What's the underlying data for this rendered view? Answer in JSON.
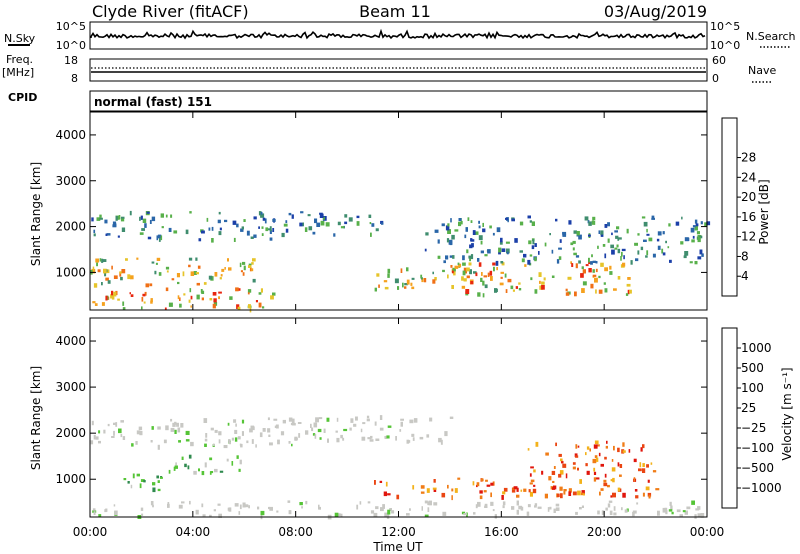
{
  "header": {
    "station": "Clyde River (fitACF)",
    "beam": "Beam 11",
    "date": "03/Aug/2019"
  },
  "top_panels": {
    "nsky_label": "N.Sky",
    "nsky_ticks": [
      "10^5",
      "10^0"
    ],
    "nsearch_label": "N.Search",
    "nsearch_ticks": [
      "10^5",
      "10^0"
    ],
    "freq_label": "Freq.",
    "freq_unit": "[MHz]",
    "freq_ticks": [
      "18",
      "8"
    ],
    "nave_label": "Nave",
    "nave_ticks": [
      "60",
      "0"
    ],
    "cpid_label": "CPID",
    "cpid_value": "normal (fast) 151"
  },
  "chart_data": [
    {
      "type": "heatmap",
      "panel": "power",
      "ylabel": "Slant Range [km]",
      "xlabel": "Time UT",
      "xlim_hours": [
        0,
        24
      ],
      "ylim": [
        180,
        4500
      ],
      "y_ticks": [
        "1000",
        "2000",
        "3000",
        "4000"
      ],
      "x_ticks": [
        "00:00",
        "04:00",
        "08:00",
        "12:00",
        "16:00",
        "20:00",
        "00:00"
      ],
      "colorbar": {
        "label": "Power [dB]",
        "ticks": [
          "4",
          "8",
          "12",
          "16",
          "20",
          "24",
          "28"
        ],
        "colors": [
          "#1420e6",
          "#1b3fa8",
          "#2a66a8",
          "#3f8d6e",
          "#58b04a",
          "#e6c42a",
          "#f5a11e",
          "#f07016",
          "#e8260f"
        ]
      },
      "features": [
        {
          "t0": 0.0,
          "t1": 7.3,
          "r0": 180,
          "r1": 650,
          "level": "high"
        },
        {
          "t0": 0.0,
          "t1": 6.5,
          "r0": 700,
          "r1": 1300,
          "level": "mid"
        },
        {
          "t0": 0.0,
          "t1": 8.0,
          "r0": 1700,
          "r1": 2300,
          "level": "low"
        },
        {
          "t0": 8.0,
          "t1": 11.5,
          "r0": 1800,
          "r1": 2300,
          "level": "low"
        },
        {
          "t0": 11.0,
          "t1": 16.0,
          "r0": 600,
          "r1": 1100,
          "level": "mid"
        },
        {
          "t0": 14.0,
          "t1": 21.0,
          "r0": 500,
          "r1": 1200,
          "level": "high"
        },
        {
          "t0": 13.0,
          "t1": 24.0,
          "r0": 1200,
          "r1": 2200,
          "level": "low"
        }
      ]
    },
    {
      "type": "heatmap",
      "panel": "velocity",
      "ylabel": "Slant Range [km]",
      "xlabel": "Time UT",
      "xlim_hours": [
        0,
        24
      ],
      "ylim": [
        180,
        4500
      ],
      "y_ticks": [
        "1000",
        "2000",
        "3000",
        "4000"
      ],
      "x_ticks": [
        "00:00",
        "04:00",
        "08:00",
        "12:00",
        "16:00",
        "20:00",
        "00:00"
      ],
      "colorbar": {
        "label": "Velocity [m s⁻¹]",
        "ticks": [
          "1000",
          "500",
          "100",
          "25",
          "−25",
          "−100",
          "−500",
          "−1000"
        ],
        "colors": [
          "#1a3fd1",
          "#2264a6",
          "#2f8a4e",
          "#55c436",
          "#c8c8c4",
          "#f3b21a",
          "#f07c16",
          "#ea4512",
          "#e0150c"
        ]
      },
      "features": [
        {
          "t0": 0.0,
          "t1": 8.5,
          "r0": 1700,
          "r1": 2300,
          "level": "gray"
        },
        {
          "t0": 8.5,
          "t1": 14.0,
          "r0": 1800,
          "r1": 2350,
          "level": "gray"
        },
        {
          "t0": 1.0,
          "t1": 3.0,
          "r0": 700,
          "r1": 1100,
          "level": "green"
        },
        {
          "t0": 3.0,
          "t1": 6.0,
          "r0": 1100,
          "r1": 1500,
          "level": "green"
        },
        {
          "t0": 11.0,
          "t1": 17.5,
          "r0": 600,
          "r1": 1000,
          "level": "orange"
        },
        {
          "t0": 17.0,
          "t1": 22.0,
          "r0": 600,
          "r1": 1800,
          "level": "orange"
        },
        {
          "t0": 0.0,
          "t1": 24.0,
          "r0": 180,
          "r1": 500,
          "level": "gray"
        }
      ]
    }
  ]
}
